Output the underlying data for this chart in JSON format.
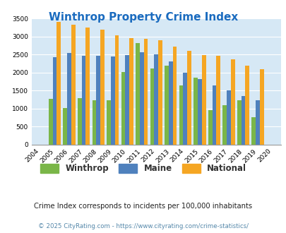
{
  "title": "Winthrop Property Crime Index",
  "years": [
    2004,
    2005,
    2006,
    2007,
    2008,
    2009,
    2010,
    2011,
    2012,
    2013,
    2014,
    2015,
    2016,
    2017,
    2018,
    2019,
    2020
  ],
  "winthrop": [
    0,
    1270,
    1020,
    1280,
    1220,
    1220,
    2010,
    2820,
    2110,
    2190,
    1640,
    1860,
    960,
    1090,
    1220,
    760,
    0
  ],
  "maine": [
    0,
    2430,
    2550,
    2460,
    2470,
    2440,
    2490,
    2560,
    2510,
    2310,
    1990,
    1820,
    1640,
    1510,
    1340,
    1230,
    0
  ],
  "national": [
    0,
    3400,
    3330,
    3250,
    3200,
    3040,
    2950,
    2930,
    2890,
    2720,
    2600,
    2490,
    2470,
    2370,
    2200,
    2100,
    0
  ],
  "winthrop_color": "#7ab648",
  "maine_color": "#4f81bd",
  "national_color": "#f5a623",
  "bg_color": "#d6e8f5",
  "ylim": [
    0,
    3500
  ],
  "yticks": [
    0,
    500,
    1000,
    1500,
    2000,
    2500,
    3000,
    3500
  ],
  "subtitle": "Crime Index corresponds to incidents per 100,000 inhabitants",
  "footer": "© 2025 CityRating.com - https://www.cityrating.com/crime-statistics/",
  "title_color": "#1a6bbf",
  "subtitle_color": "#222222",
  "footer_color": "#5588aa"
}
